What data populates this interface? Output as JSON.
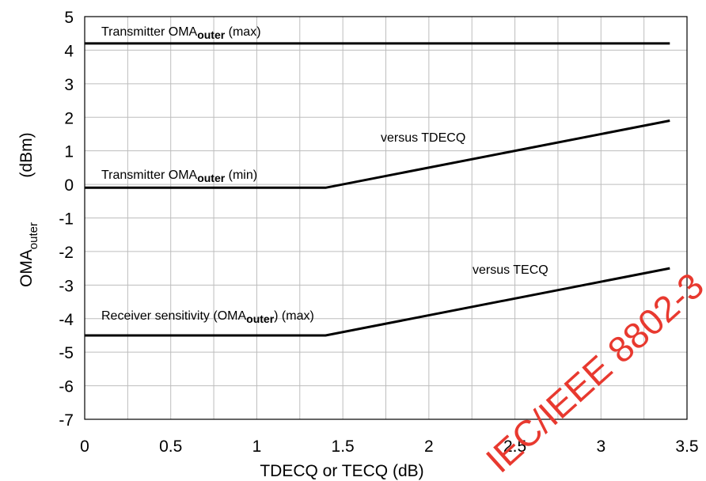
{
  "chart_data": {
    "type": "line",
    "xlabel": "TDECQ or TECQ (dB)",
    "ylabel_main": "OMA",
    "ylabel_sub": "outer",
    "ylabel_unit": "(dBm)",
    "xlim": [
      0,
      3.5
    ],
    "ylim": [
      -7,
      5
    ],
    "x_ticks": [
      "0",
      "0.5",
      "1",
      "1.5",
      "2",
      "2.5",
      "3",
      "3.5"
    ],
    "y_ticks": [
      "5",
      "4",
      "3",
      "2",
      "1",
      "0",
      "-1",
      "-2",
      "-3",
      "-4",
      "-5",
      "-6",
      "-7"
    ],
    "grid": true,
    "series": [
      {
        "x": [
          0,
          3.4
        ],
        "y": [
          4.2,
          4.2
        ]
      },
      {
        "x": [
          0,
          1.4,
          3.4
        ],
        "y": [
          -0.1,
          -0.1,
          1.9
        ]
      },
      {
        "x": [
          0,
          1.4,
          3.4
        ],
        "y": [
          -4.5,
          -4.5,
          -2.5
        ]
      }
    ],
    "annotations": {
      "tx_max": {
        "pre": "Transmitter OMA",
        "bold": "outer",
        "post": " (max)"
      },
      "tx_min": {
        "pre": "Transmitter OMA",
        "bold": "outer",
        "post": " (min)"
      },
      "rx_sens": {
        "pre": "Receiver sensitivity (OMA",
        "bold": "outer",
        "post": ") (max)"
      },
      "vs_tdecq": "versus TDECQ",
      "vs_tecq": "versus TECQ"
    },
    "watermark": "IEC/IEEE 8802-3"
  }
}
